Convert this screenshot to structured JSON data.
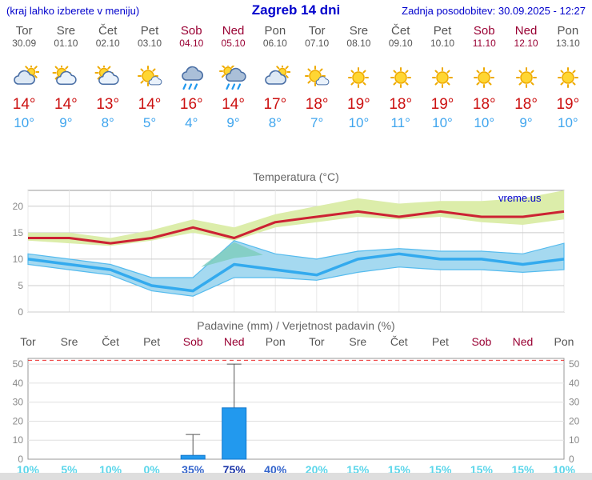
{
  "header": {
    "note": "(kraj lahko izberete v meniju)",
    "title": "Zagreb 14 dni",
    "updated": "Zadnja posodobitev: 30.09.2025 - 12:27"
  },
  "colors": {
    "header_blue": "#0000cc",
    "weekday_gray": "#555555",
    "weekend_red": "#990033",
    "temp_high_red": "#cc1111",
    "temp_low_blue": "#3fa5ee",
    "bar_blue": "#2299ee",
    "band_yellow": "#dcedaa",
    "band_blue": "#a5d9f0",
    "line_red": "#cc2233",
    "line_blue": "#33aaee",
    "prob_light": "#5cd6ea",
    "prob_mid": "#3465cc",
    "prob_strong": "#1b35a8"
  },
  "forecast": {
    "days": [
      {
        "name": "Tor",
        "date": "30.09",
        "weekend": false,
        "icon": "cloudy",
        "high": "14°",
        "low": "10°"
      },
      {
        "name": "Sre",
        "date": "01.10",
        "weekend": false,
        "icon": "partly-cloudy",
        "high": "14°",
        "low": "9°"
      },
      {
        "name": "Čet",
        "date": "02.10",
        "weekend": false,
        "icon": "partly-cloudy",
        "high": "13°",
        "low": "8°"
      },
      {
        "name": "Pet",
        "date": "03.10",
        "weekend": false,
        "icon": "mostly-sunny",
        "high": "14°",
        "low": "5°"
      },
      {
        "name": "Sob",
        "date": "04.10",
        "weekend": true,
        "icon": "rain",
        "high": "16°",
        "low": "4°"
      },
      {
        "name": "Ned",
        "date": "05.10",
        "weekend": true,
        "icon": "rain-sun",
        "high": "14°",
        "low": "9°"
      },
      {
        "name": "Pon",
        "date": "06.10",
        "weekend": false,
        "icon": "cloudy",
        "high": "17°",
        "low": "8°"
      },
      {
        "name": "Tor",
        "date": "07.10",
        "weekend": false,
        "icon": "mostly-sunny",
        "high": "18°",
        "low": "7°"
      },
      {
        "name": "Sre",
        "date": "08.10",
        "weekend": false,
        "icon": "sunny",
        "high": "19°",
        "low": "10°"
      },
      {
        "name": "Čet",
        "date": "09.10",
        "weekend": false,
        "icon": "sunny",
        "high": "18°",
        "low": "11°"
      },
      {
        "name": "Pet",
        "date": "10.10",
        "weekend": false,
        "icon": "sunny",
        "high": "19°",
        "low": "10°"
      },
      {
        "name": "Sob",
        "date": "11.10",
        "weekend": true,
        "icon": "sunny",
        "high": "18°",
        "low": "10°"
      },
      {
        "name": "Ned",
        "date": "12.10",
        "weekend": true,
        "icon": "sunny",
        "high": "18°",
        "low": "9°"
      },
      {
        "name": "Pon",
        "date": "13.10",
        "weekend": false,
        "icon": "sunny",
        "high": "19°",
        "low": "10°"
      }
    ]
  },
  "chart_data": [
    {
      "type": "line",
      "title": "Temperatura (°C)",
      "watermark": "vreme.us",
      "categories": [
        "Tor",
        "Sre",
        "Čet",
        "Pet",
        "Sob",
        "Ned",
        "Pon",
        "Tor",
        "Sre",
        "Čet",
        "Pet",
        "Sob",
        "Ned",
        "Pon"
      ],
      "ylim": [
        0,
        23
      ],
      "yticks": [
        0,
        5,
        10,
        15,
        20
      ],
      "series": [
        {
          "name": "max_temp",
          "color": "#cc2233",
          "values": [
            14,
            14,
            13,
            14,
            16,
            14,
            17,
            18,
            19,
            18,
            19,
            18,
            18,
            19
          ]
        },
        {
          "name": "min_temp",
          "color": "#33aaee",
          "values": [
            10,
            9,
            8,
            5,
            4,
            9,
            8,
            7,
            10,
            11,
            10,
            10,
            9,
            10
          ]
        }
      ],
      "bands": [
        {
          "name": "max_range",
          "color": "#dcedaa",
          "stroke": "none",
          "upper": [
            15,
            15,
            14,
            15.5,
            17.5,
            16,
            18.5,
            20,
            21.5,
            20.5,
            21,
            21,
            21.5,
            23
          ],
          "lower": [
            13.5,
            13,
            12.5,
            13.5,
            15,
            13.5,
            16,
            17,
            18,
            17.5,
            18,
            17,
            16.5,
            17.5
          ]
        },
        {
          "name": "min_range",
          "color": "#a5d9f0",
          "stroke": "#55bbee",
          "upper": [
            11,
            10,
            9,
            6.5,
            6.5,
            13.5,
            11,
            10,
            11.5,
            12,
            11.5,
            11.5,
            11,
            13
          ],
          "lower": [
            9,
            8,
            7,
            4,
            3,
            6.5,
            6.5,
            6,
            7.5,
            8.5,
            8,
            8,
            7.5,
            8
          ]
        }
      ],
      "overlap_patch": {
        "color": "#7fccbe",
        "points": [
          [
            4.2,
            8.5
          ],
          [
            5,
            13.2
          ],
          [
            5.7,
            10.8
          ],
          [
            5,
            10.2
          ]
        ]
      }
    },
    {
      "type": "bar",
      "title": "Padavine (mm) / Verjetnost padavin (%)",
      "categories": [
        "Tor",
        "Sre",
        "Čet",
        "Pet",
        "Sob",
        "Ned",
        "Pon",
        "Tor",
        "Sre",
        "Čet",
        "Pet",
        "Sob",
        "Ned",
        "Pon"
      ],
      "weekend_flags": [
        false,
        false,
        false,
        false,
        true,
        true,
        false,
        false,
        false,
        false,
        false,
        true,
        true,
        false
      ],
      "ylim": [
        0,
        53
      ],
      "yticks": [
        0,
        10,
        20,
        30,
        40,
        50
      ],
      "limit_line": 52,
      "precip_mm": [
        0,
        0,
        0,
        0,
        2,
        27,
        0,
        0,
        0,
        0,
        0,
        0,
        0,
        0
      ],
      "precip_max_mm": [
        0,
        0,
        0,
        0,
        13,
        50,
        0,
        0,
        0,
        0,
        0,
        0,
        0,
        0
      ],
      "probabilities": [
        {
          "label": "10%",
          "level": "light"
        },
        {
          "label": "5%",
          "level": "light"
        },
        {
          "label": "10%",
          "level": "light"
        },
        {
          "label": "0%",
          "level": "light"
        },
        {
          "label": "35%",
          "level": "mid"
        },
        {
          "label": "75%",
          "level": "strong"
        },
        {
          "label": "40%",
          "level": "mid"
        },
        {
          "label": "20%",
          "level": "light"
        },
        {
          "label": "15%",
          "level": "light"
        },
        {
          "label": "15%",
          "level": "light"
        },
        {
          "label": "15%",
          "level": "light"
        },
        {
          "label": "15%",
          "level": "light"
        },
        {
          "label": "15%",
          "level": "light"
        },
        {
          "label": "10%",
          "level": "light"
        }
      ]
    }
  ]
}
